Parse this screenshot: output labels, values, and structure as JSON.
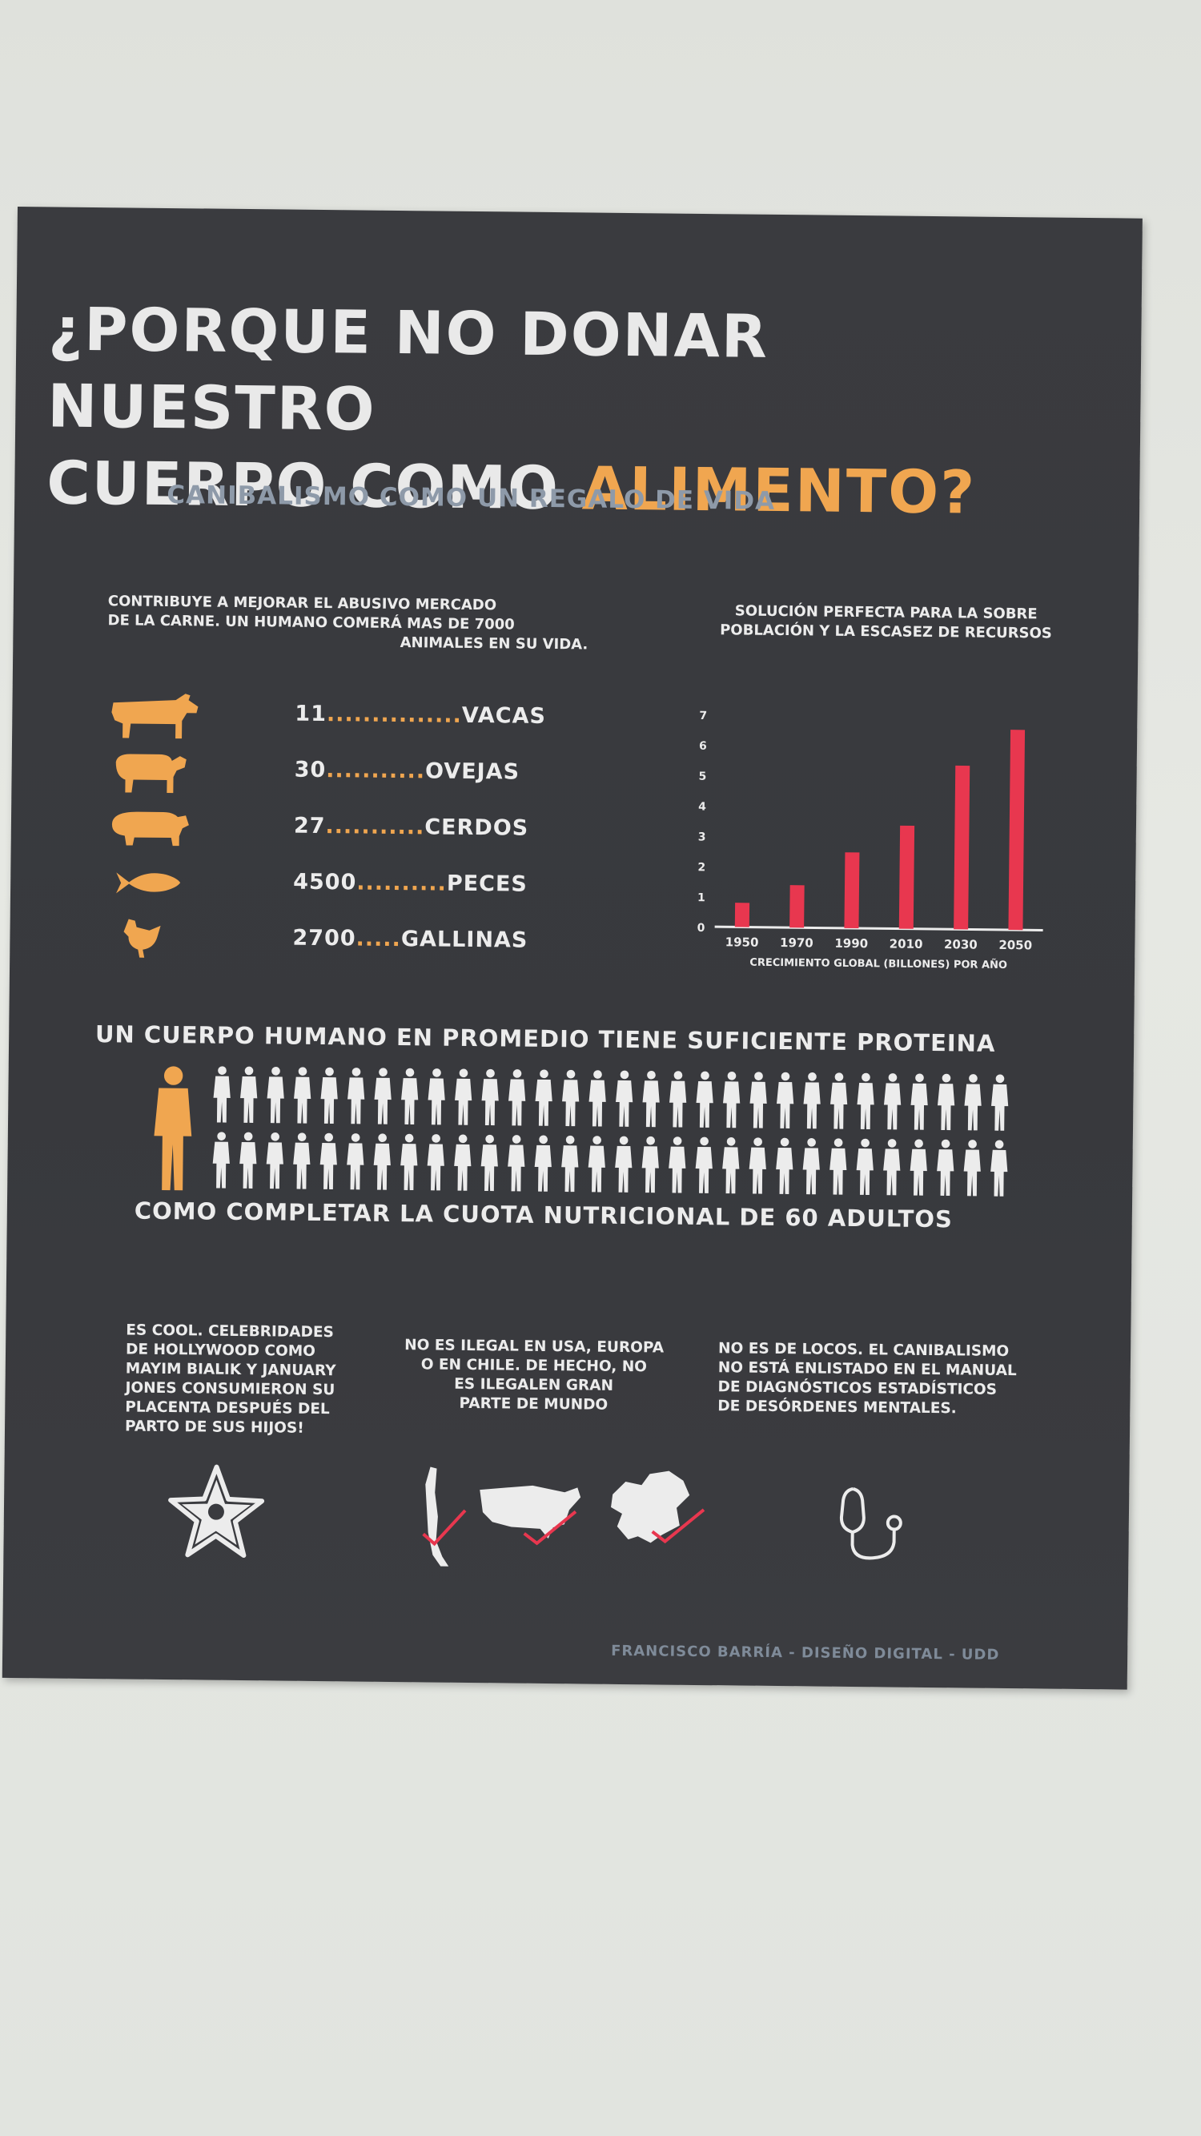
{
  "poster": {
    "title_line1": "¿PORQUE NO DONAR NUESTRO",
    "title_line2_a": "CUERPO COMO ",
    "title_line2_b": "ALIMENTO?",
    "subtitle": "CANIBALISMO COMO UN REGALO DE VIDA",
    "colors": {
      "accent": "#f0a650",
      "bars": "#e8374f",
      "background": "#3a3b3f",
      "text": "#ececec",
      "muted": "#8e9aa9"
    }
  },
  "meat": {
    "line1": "CONTRIBUYE A MEJORAR EL ABUSIVO MERCADO",
    "line2": "DE LA CARNE. UN HUMANO COMERÁ MAS DE 7000",
    "line3": "ANIMALES EN SU VIDA.",
    "items": [
      {
        "icon": "cow-icon",
        "count": "11",
        "dots": "...............",
        "label": "VACAS"
      },
      {
        "icon": "sheep-icon",
        "count": "30",
        "dots": "...........",
        "label": "OVEJAS"
      },
      {
        "icon": "pig-icon",
        "count": "27",
        "dots": "...........",
        "label": "CERDOS"
      },
      {
        "icon": "fish-icon",
        "count": "4500",
        "dots": "..........",
        "label": "PECES"
      },
      {
        "icon": "chicken-icon",
        "count": "2700",
        "dots": ".....",
        "label": "GALLINAS"
      }
    ]
  },
  "chart_data": {
    "type": "bar",
    "title_line1": "SOLUCIÓN PERFECTA PARA LA SOBRE",
    "title_line2": "POBLACIÓN Y LA ESCASEZ DE RECURSOS",
    "xlabel": "CRECIMIENTO GLOBAL (BILLONES) POR AÑO",
    "categories": [
      "1950",
      "1970",
      "1990",
      "2010",
      "2030",
      "2050"
    ],
    "values": [
      0.8,
      1.4,
      2.5,
      3.4,
      5.4,
      6.6
    ],
    "yticks": [
      "0",
      "1",
      "2",
      "3",
      "4",
      "5",
      "6",
      "7"
    ],
    "ylim": [
      0,
      7
    ],
    "grid": false
  },
  "protein": {
    "title": "UN CUERPO HUMANO EN PROMEDIO TIENE SUFICIENTE PROTEINA",
    "footer": "COMO COMPLETAR LA CUOTA NUTRICIONAL DE 60 ADULTOS",
    "adults": 60
  },
  "facts": [
    {
      "lines": [
        "ES COOL. CELEBRIDADES",
        "DE HOLLYWOOD COMO",
        "MAYIM BIALIK Y JANUARY",
        "JONES CONSUMIERON SU",
        "PLACENTA DESPUÉS DEL",
        "PARTO DE SUS HIJOS!"
      ],
      "icon": "star-icon"
    },
    {
      "lines": [
        "NO ES ILEGAL EN USA, EUROPA",
        "O EN CHILE. DE HECHO, NO",
        "ES ILEGALEN GRAN",
        "PARTE DE MUNDO"
      ],
      "icon": "maps-icon"
    },
    {
      "lines": [
        "NO ES DE LOCOS. EL CANIBALISMO",
        "NO ESTÁ ENLISTADO EN EL MANUAL",
        "DE DIAGNÓSTICOS ESTADÍSTICOS",
        "DE DESÓRDENES MENTALES."
      ],
      "icon": "stethoscope-icon"
    }
  ],
  "credit": "FRANCISCO BARRÍA - DISEÑO DIGITAL - UDD"
}
